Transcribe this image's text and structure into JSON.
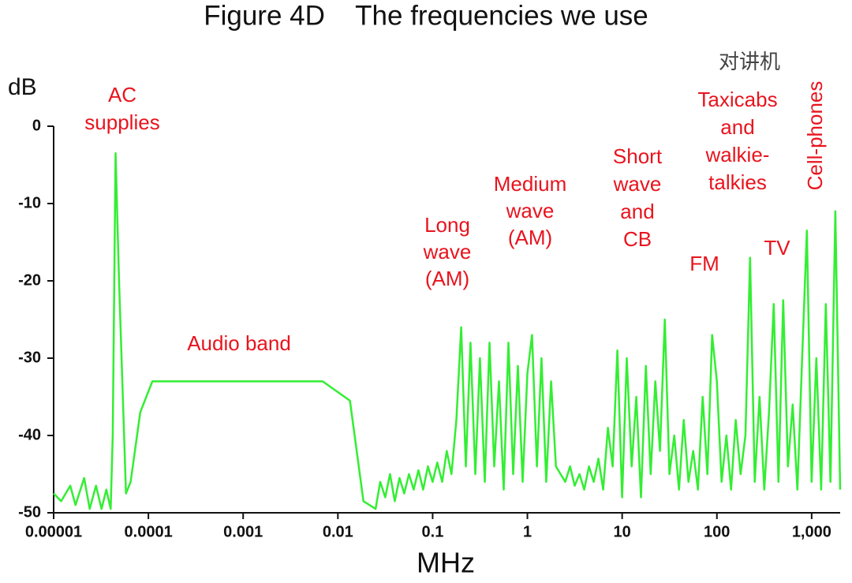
{
  "chart_data": {
    "type": "line",
    "title": "Figure 4D    The frequencies we use",
    "ylabel": "dB",
    "xlabel": "MHz",
    "xscale": "log",
    "color": "#33ee33",
    "xlim": [
      1e-05,
      2000
    ],
    "ylim": [
      -50,
      0
    ],
    "xticks": [
      {
        "value": 1e-05,
        "label": "0.00001"
      },
      0.0001,
      0.001,
      0.01,
      0.1,
      1,
      10,
      100,
      {
        "value": 1000,
        "label": "1,000"
      }
    ],
    "yticks": [
      0,
      -10,
      -20,
      -30,
      -40,
      -50
    ],
    "annotations": [
      {
        "lines": [
          "AC",
          "supplies"
        ],
        "color": "#e8141e"
      },
      {
        "lines": [
          "Audio band"
        ],
        "color": "#e8141e"
      },
      {
        "lines": [
          "Long",
          "wave",
          "(AM)"
        ],
        "color": "#e8141e"
      },
      {
        "lines": [
          "Medium",
          "wave",
          "(AM)"
        ],
        "color": "#e8141e"
      },
      {
        "lines": [
          "Short",
          "wave",
          "and",
          "CB"
        ],
        "color": "#e8141e"
      },
      {
        "lines": [
          "Taxicabs",
          "and",
          "walkie-",
          "talkies"
        ],
        "color": "#e8141e"
      },
      {
        "lines": [
          "FM"
        ],
        "color": "#e8141e"
      },
      {
        "lines": [
          "TV"
        ],
        "color": "#e8141e"
      },
      {
        "lines": [
          "Cell-phones"
        ],
        "color": "#e8141e"
      },
      {
        "lines": [
          "对讲机"
        ],
        "color": "#444444"
      }
    ],
    "x": [
      1e-05,
      1.2e-05,
      1.5e-05,
      1.7e-05,
      2.1e-05,
      2.4e-05,
      2.8e-05,
      3.2e-05,
      3.6e-05,
      4e-05,
      4.2e-05,
      4.5e-05,
      4.9e-05,
      5.8e-05,
      6.5e-05,
      8.2e-05,
      0.00011,
      0.0069,
      0.0134,
      0.0186,
      0.025,
      0.028,
      0.0316,
      0.0355,
      0.0398,
      0.0447,
      0.0501,
      0.0562,
      0.0631,
      0.0708,
      0.0794,
      0.0891,
      0.1,
      0.112,
      0.126,
      0.141,
      0.158,
      0.178,
      0.2,
      0.224,
      0.251,
      0.282,
      0.316,
      0.355,
      0.398,
      0.447,
      0.501,
      0.562,
      0.631,
      0.708,
      0.794,
      0.891,
      1,
      1.12,
      1.26,
      1.41,
      1.58,
      1.78,
      2,
      2.24,
      2.51,
      2.82,
      3.16,
      3.55,
      3.98,
      4.47,
      5.01,
      5.62,
      6.31,
      7.08,
      7.94,
      8.91,
      10,
      11.2,
      12.6,
      14.1,
      15.8,
      17.8,
      20,
      22.4,
      25.1,
      28.2,
      31.6,
      35.5,
      39.8,
      44.7,
      50.1,
      56.2,
      63.1,
      70.8,
      79.4,
      89.1,
      100,
      112,
      126,
      141,
      158,
      178,
      200,
      224,
      251,
      282,
      316,
      355,
      398,
      447,
      501,
      562,
      631,
      708,
      794,
      891,
      1000,
      1120,
      1260,
      1410,
      1580,
      1780,
      2000
    ],
    "values": [
      -47.5,
      -48.5,
      -46.5,
      -49,
      -45.5,
      -49.5,
      -46.5,
      -49.5,
      -47,
      -49.5,
      -40,
      -3.5,
      -20,
      -47.5,
      -46,
      -37,
      -33,
      -33,
      -35.5,
      -48.5,
      -49.5,
      -46,
      -48,
      -45,
      -48.5,
      -45.5,
      -47.5,
      -45,
      -47,
      -44.5,
      -47,
      -44,
      -46,
      -43.5,
      -46,
      -42,
      -45,
      -38,
      -26,
      -44,
      -28,
      -45,
      -30,
      -46,
      -28,
      -44,
      -33,
      -47,
      -28,
      -45,
      -31,
      -46,
      -32,
      -27,
      -44,
      -30,
      -46,
      -33,
      -44,
      -45,
      -46,
      -44,
      -46.5,
      -45,
      -47,
      -44,
      -46,
      -43,
      -47,
      -39,
      -44,
      -29,
      -48,
      -30,
      -44,
      -35,
      -48,
      -31,
      -45,
      -33,
      -42,
      -25,
      -45,
      -40,
      -47,
      -38,
      -46,
      -42,
      -47,
      -35,
      -45,
      -27,
      -33,
      -46,
      -40,
      -47,
      -38,
      -45,
      -40,
      -17,
      -46,
      -35,
      -47,
      -37,
      -23,
      -46,
      -22.5,
      -44,
      -36,
      -47,
      -30,
      -13.5,
      -46,
      -30,
      -47,
      -23,
      -46,
      -11,
      -47
    ]
  }
}
